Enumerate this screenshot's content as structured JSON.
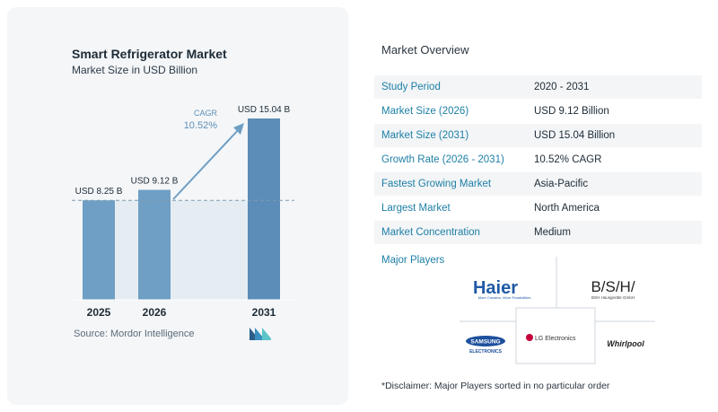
{
  "chart_data": {
    "type": "bar",
    "title": "Smart Refrigerator Market",
    "subtitle": "Market Size in USD Billion",
    "categories": [
      "2025",
      "2026",
      "2031"
    ],
    "values": [
      8.25,
      9.12,
      15.04
    ],
    "value_labels": [
      "USD 8.25 B",
      "USD 9.12 B",
      "USD 15.04 B"
    ],
    "cagr_label": "CAGR",
    "cagr_value": "10.52%",
    "ylim": [
      0,
      15.04
    ],
    "grid": false,
    "bar_color": "#6f9fc4",
    "bar_color_top": "#5b8db8",
    "baseline_fill": "#dbe7ef"
  },
  "source": "Source:  Mordor Intelligence",
  "overview": {
    "title": "Market Overview",
    "rows": [
      {
        "label": "Study Period",
        "value": "2020 - 2031"
      },
      {
        "label": "Market Size (2026)",
        "value": "USD 9.12 Billion"
      },
      {
        "label": "Market Size (2031)",
        "value": "USD 15.04 Billion"
      },
      {
        "label": "Growth Rate (2026 - 2031)",
        "value": "10.52% CAGR"
      },
      {
        "label": "Fastest Growing Market",
        "value": "Asia-Pacific"
      },
      {
        "label": "Largest Market",
        "value": "North America"
      },
      {
        "label": "Market Concentration",
        "value": "Medium"
      }
    ]
  },
  "players": {
    "title": "Major Players",
    "haier": "Haier",
    "haier_tag": "More Creation, More Possibilities",
    "bsh": "B/S/H/",
    "bsh_tag": "BSH Hausgeräte GmbH",
    "lg": "LG Electronics",
    "samsung": "SAMSUNG",
    "samsung_tag": "ELECTRONICS",
    "whirlpool": "Whirlpool"
  },
  "disclaimer": "*Disclaimer: Major Players sorted in no particular order"
}
